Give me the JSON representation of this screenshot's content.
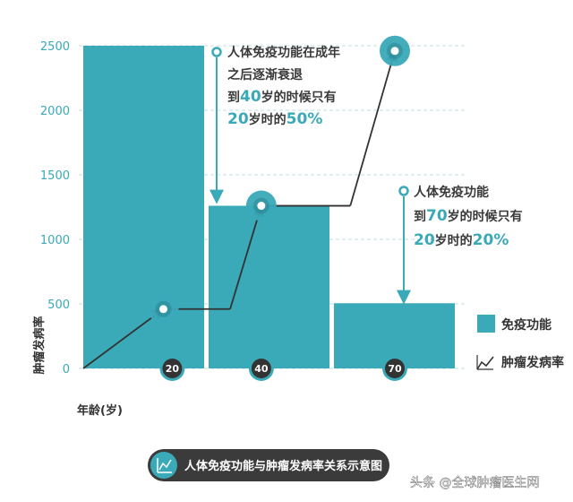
{
  "chart_data": {
    "type": "bar",
    "categories": [
      "20",
      "40",
      "70"
    ],
    "series": [
      {
        "name": "免疫功能",
        "type": "bar",
        "values": [
          2500,
          1260,
          505
        ]
      },
      {
        "name": "肿瘤发病率",
        "type": "line",
        "points": [
          [
            0,
            0
          ],
          [
            18,
            460
          ],
          [
            33,
            460
          ],
          [
            40,
            1260
          ],
          [
            60,
            1260
          ],
          [
            70,
            2460
          ]
        ]
      }
    ],
    "ylabel": "肿瘤发病率",
    "xlabel": "年龄(岁)",
    "yticks": [
      0,
      500,
      1000,
      1500,
      2000,
      2500
    ],
    "ylim": [
      0,
      2500
    ],
    "grid": true,
    "legend": "right",
    "colors": {
      "bar": "#3aa9b8",
      "line": "#333333",
      "marker": "#3aa9b8",
      "caption_bg": "#3b3b3b"
    },
    "annotations": [
      {
        "lines": [
          [
            "人体免疫功能在成年"
          ],
          [
            "之后逐渐衰退"
          ],
          [
            "到",
            "40",
            "岁的时候只有"
          ],
          [
            "20",
            "岁时的",
            "50%"
          ]
        ]
      },
      {
        "lines": [
          [
            "人体免疫功能"
          ],
          [
            "到",
            "70",
            "岁的时候只有"
          ],
          [
            "20",
            "岁时的",
            "20%"
          ]
        ]
      }
    ]
  },
  "caption": "人体免疫功能与肿瘤发病率关系示意图",
  "watermark": "头条 @全球肿瘤医生网"
}
